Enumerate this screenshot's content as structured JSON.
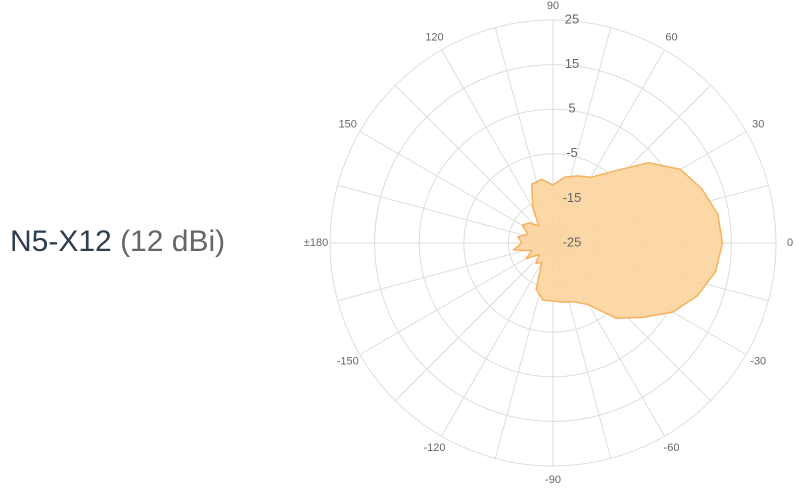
{
  "chart_data": {
    "type": "polar-area",
    "title": "N5-X12",
    "subtitle": "(12 dBi)",
    "x": [
      -170,
      -160,
      -150,
      -140,
      -130,
      -120,
      -110,
      -100,
      -90,
      -80,
      -70,
      -60,
      -50,
      -40,
      -30,
      -20,
      -10,
      0,
      10,
      20,
      30,
      40,
      50,
      60,
      70,
      80,
      90,
      100,
      110,
      120,
      130,
      140,
      150,
      160,
      170,
      180
    ],
    "values": [
      -16,
      -20,
      -18,
      -21,
      -19,
      -20,
      -14,
      -12,
      -12,
      -11.5,
      -11,
      -9,
      -3,
      1,
      6,
      9.5,
      12,
      13,
      12.5,
      10.5,
      8,
      3,
      -4,
      -8,
      -9,
      -10,
      -12,
      -10.5,
      -11,
      -16,
      -20,
      -18,
      -17,
      -19,
      -17,
      -18
    ],
    "color": "#fcd49c",
    "line_color": "#f5b15e",
    "xticks": [
      0,
      30,
      60,
      90,
      120,
      150,
      {
        "value": 180,
        "label": "±180"
      },
      -150,
      -120,
      -90,
      -60,
      -30
    ],
    "xminorticks": [
      15,
      45,
      75,
      105,
      135,
      165,
      -165,
      -135,
      -105,
      -75,
      -45,
      -15
    ],
    "ylim": [
      -25,
      25
    ],
    "yticks": [
      -25,
      -15,
      -5,
      5,
      15,
      25
    ],
    "grid": true
  }
}
